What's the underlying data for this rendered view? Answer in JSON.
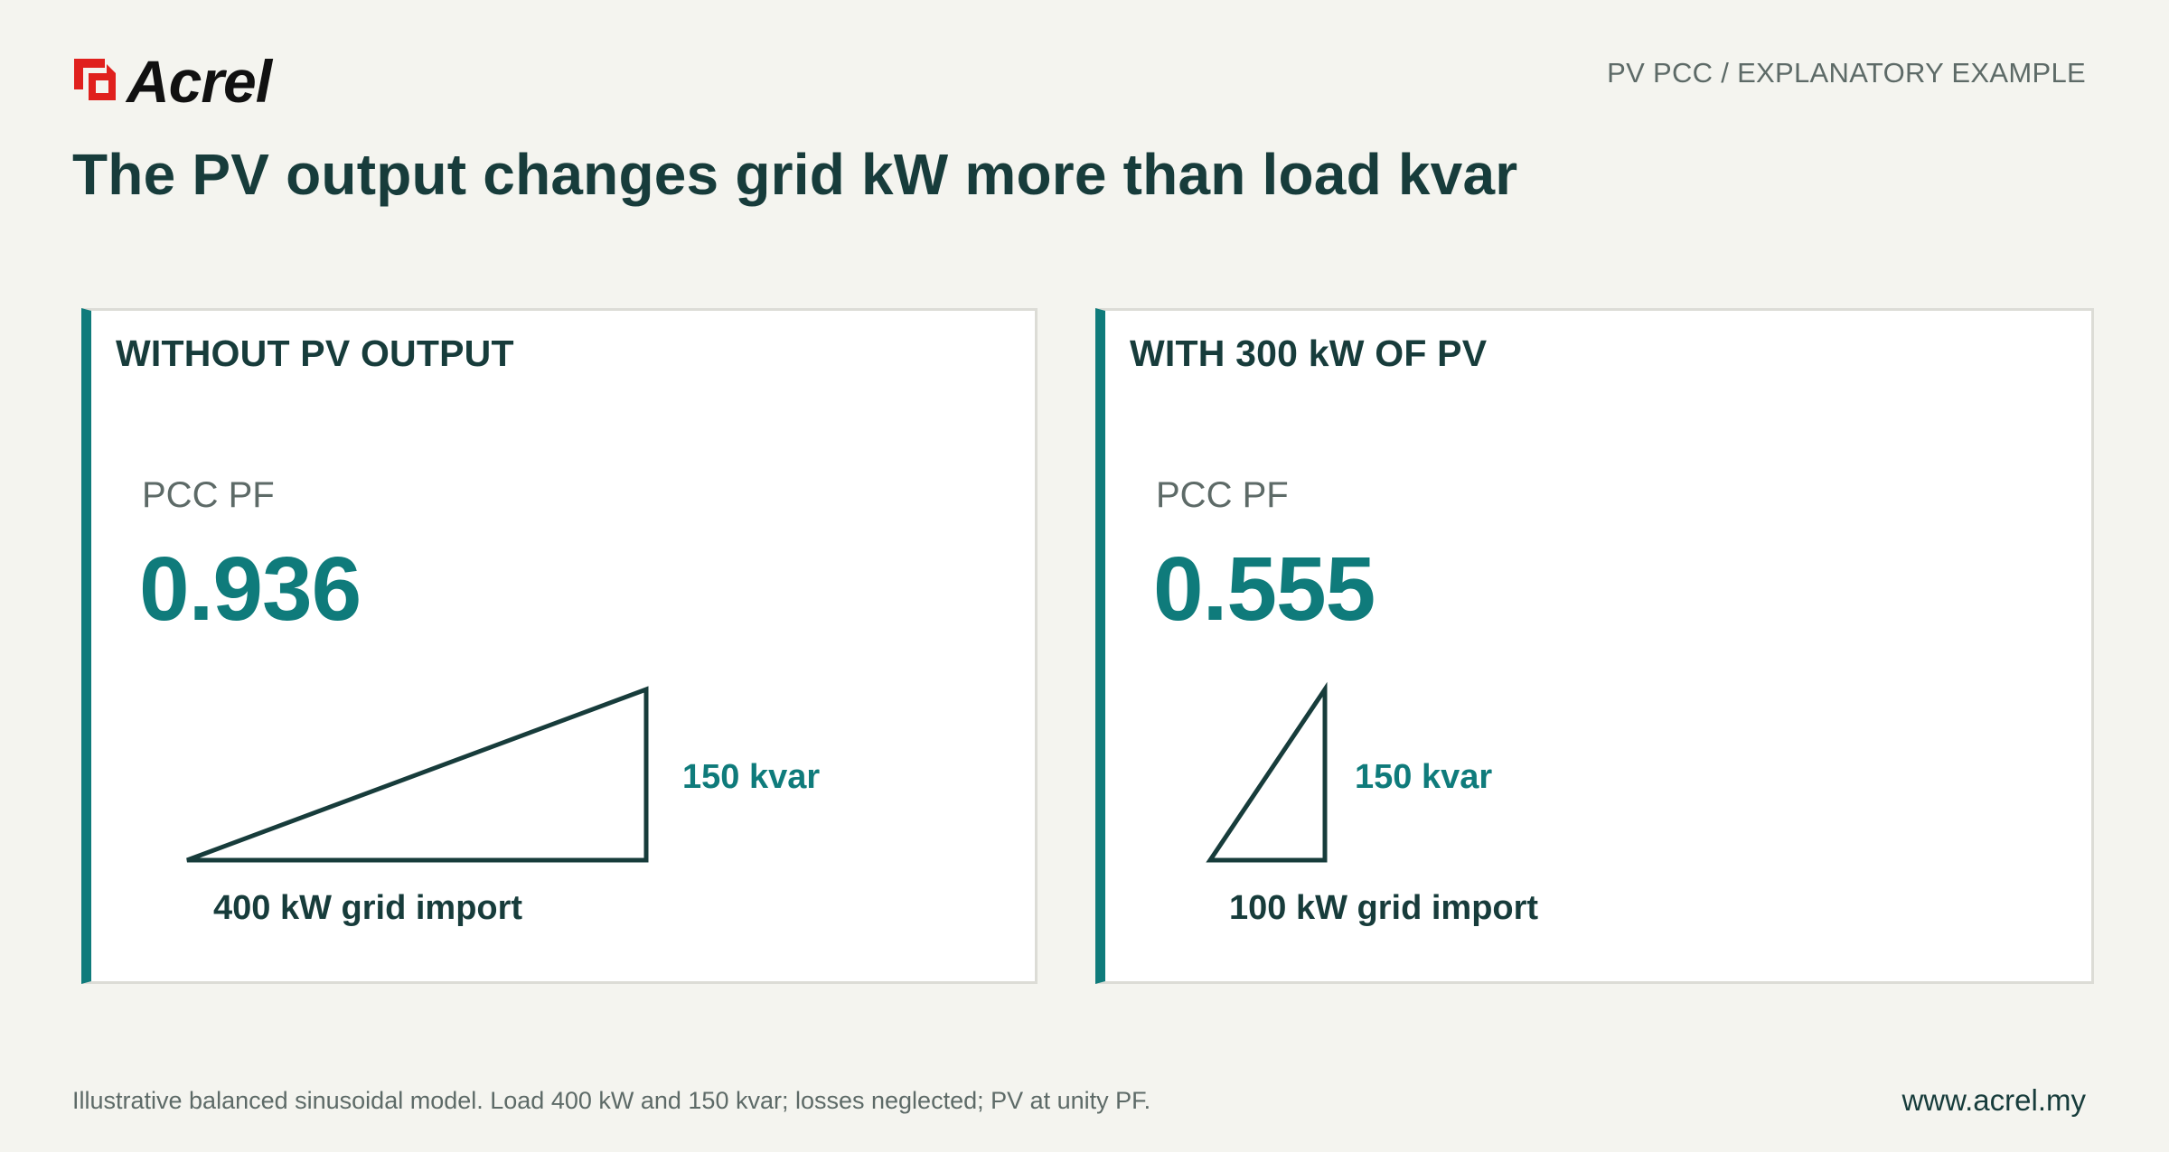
{
  "brand": {
    "name": "Acrel",
    "mark_color": "#e0201d",
    "text_color": "#111111"
  },
  "header": {
    "kicker": "PV PCC / EXPLANATORY EXAMPLE",
    "title": "The PV output changes grid kW more than load kvar"
  },
  "colors": {
    "accent": "#0f7b7b",
    "ink": "#173c3b",
    "muted": "#5d6a67",
    "background": "#f4f4ef",
    "panel": "#ffffff"
  },
  "panels": [
    {
      "title": "WITHOUT PV OUTPUT",
      "metric_label": "PCC PF",
      "metric_value": "0.936",
      "kvar_label": "150 kvar",
      "kw_label": "400 kW grid import",
      "grid_kw": 400,
      "kvar": 150
    },
    {
      "title": "WITH 300 kW OF PV",
      "metric_label": "PCC PF",
      "metric_value": "0.555",
      "kvar_label": "150 kvar",
      "kw_label": "100 kW grid import",
      "grid_kw": 100,
      "kvar": 150
    }
  ],
  "footer": {
    "note": "Illustrative balanced sinusoidal model. Load 400 kW and 150 kvar; losses neglected; PV at unity PF.",
    "website": "www.acrel.my"
  }
}
